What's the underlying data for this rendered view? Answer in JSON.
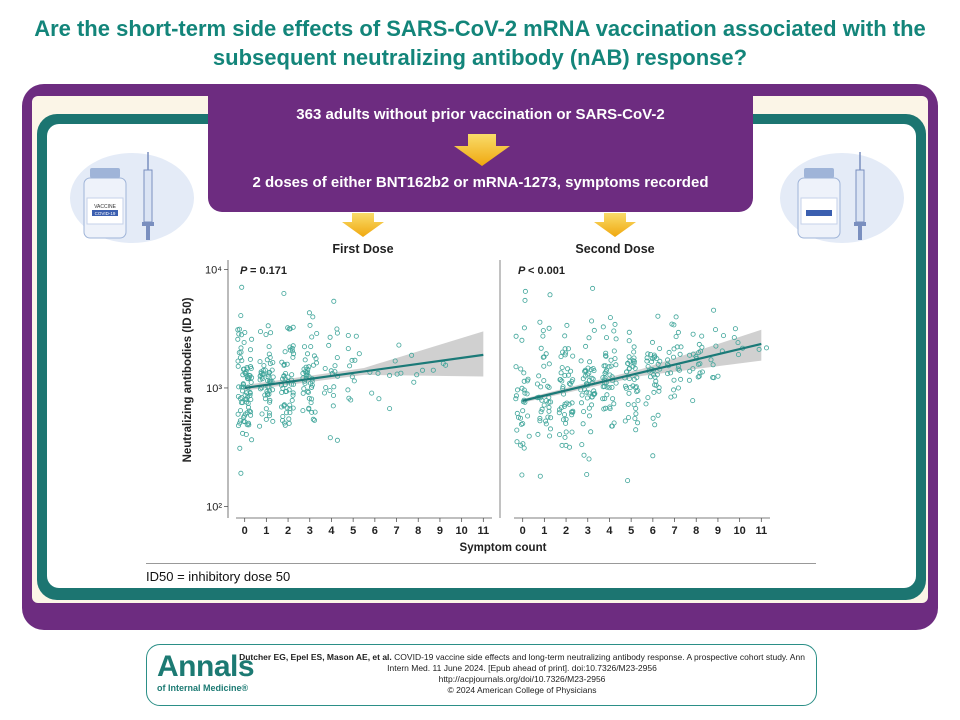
{
  "title": "Are the short-term side effects of SARS-CoV-2 mRNA vaccination associated with the subsequent neutralizing antibody (nAB) response?",
  "flow": {
    "step1": "363 adults without prior vaccination or SARS-CoV-2",
    "step2": "2 doses of either BNT162b2 or mRNA-1273, symptoms recorded"
  },
  "vial_label_1": "VACCINE",
  "vial_label_2": "COVID-19",
  "chart_data": [
    {
      "type": "scatter",
      "title": "First Dose",
      "annotation_label": "P",
      "annotation_value": "= 0.171",
      "xlabel": "Symptom count",
      "ylabel": "Neutralizing antibodies (ID 50)",
      "yscale": "log",
      "ylim": [
        80,
        12000
      ],
      "xlim": [
        -0.4,
        11.4
      ],
      "xticks": [
        0,
        1,
        2,
        3,
        4,
        5,
        6,
        7,
        8,
        9,
        10,
        11
      ],
      "yticks": [
        {
          "value": 100,
          "label": "10²"
        },
        {
          "value": 1000,
          "label": "10³"
        },
        {
          "value": 10000,
          "label": "10⁴"
        }
      ],
      "counts": [
        85,
        55,
        55,
        48,
        20,
        12,
        4,
        6,
        4,
        3,
        0,
        0
      ],
      "spread": [
        0.27,
        0.24,
        0.25,
        0.22,
        0.22,
        0.18,
        0.15,
        0.13,
        0.08,
        0.08,
        0,
        0
      ],
      "fit": {
        "x": [
          0,
          11
        ],
        "y": [
          1000,
          1900
        ],
        "ci_lower_end": 1250,
        "ci_upper_end": 3000
      }
    },
    {
      "type": "scatter",
      "title": "Second Dose",
      "annotation_label": "P",
      "annotation_value": "< 0.001",
      "xlabel": "Symptom count",
      "ylabel": "",
      "yscale": "log",
      "ylim": [
        80,
        12000
      ],
      "xlim": [
        -0.4,
        11.4
      ],
      "xticks": [
        0,
        1,
        2,
        3,
        4,
        5,
        6,
        7,
        8,
        9,
        10,
        11
      ],
      "yticks": [],
      "counts": [
        35,
        40,
        48,
        48,
        46,
        42,
        36,
        25,
        20,
        10,
        5,
        2
      ],
      "spread": [
        0.3,
        0.3,
        0.28,
        0.27,
        0.26,
        0.22,
        0.22,
        0.2,
        0.18,
        0.15,
        0.15,
        0.08
      ],
      "fit": {
        "x": [
          0,
          11
        ],
        "y": [
          780,
          2350
        ],
        "ci_lower_end": 1700,
        "ci_upper_end": 3100
      }
    }
  ],
  "footnote": "ID50 = inhibitory dose 50",
  "journal": {
    "name": "Annals",
    "sub": "of Internal Medicine®"
  },
  "citation": {
    "authors": "Dutcher EG, Epel ES, Mason AE, et al.",
    "text": "COVID-19 vaccine side effects and long-term neutralizing antibody response. A prospective cohort study. Ann Intern Med. 11 June 2024. [Epub ahead of print]. doi:10.7326/M23-2956",
    "url": "http://acpjournals.org/doi/10.7326/M23-2956",
    "copyright": "© 2024 American College of Physicians"
  },
  "colors": {
    "teal": "#13857a",
    "purple": "#6d2c80",
    "dot": "#3fa59a",
    "line": "#1b7a78",
    "band": "#c8c8c8",
    "arrow": "#f2b81a"
  }
}
